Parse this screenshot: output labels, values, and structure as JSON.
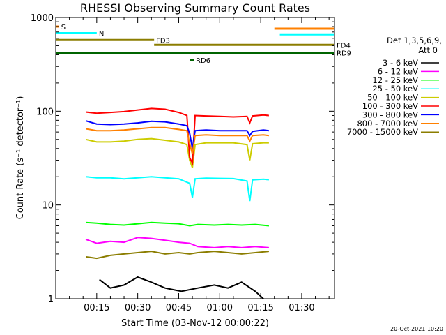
{
  "chart_data": {
    "type": "line",
    "title": "RHESSI Observing Summary Count Rates",
    "xlabel": "Start Time (03-Nov-12 00:00:22)",
    "ylabel": "Count Rate (s⁻¹ detector⁻¹)",
    "yscale": "log",
    "ylim": [
      1,
      1000
    ],
    "xlim_minutes": [
      0,
      102
    ],
    "x_ticks": [
      "00:15",
      "00:30",
      "00:45",
      "01:00",
      "01:15",
      "01:30"
    ],
    "x_tick_minutes": [
      15,
      30,
      45,
      60,
      75,
      90
    ],
    "y_ticks": [
      "1",
      "10",
      "100",
      "1000"
    ],
    "y_tick_values": [
      1,
      10,
      100,
      1000
    ],
    "legend_header": [
      "Det 1,3,5,6,9,",
      "Att 0"
    ],
    "legend_position": "right",
    "series": [
      {
        "name": "3 - 6 keV",
        "color": "#000000",
        "points": [
          [
            16,
            1.6
          ],
          [
            20,
            1.3
          ],
          [
            25,
            1.4
          ],
          [
            30,
            1.7
          ],
          [
            35,
            1.5
          ],
          [
            40,
            1.3
          ],
          [
            46,
            1.2
          ],
          [
            52,
            1.3
          ],
          [
            58,
            1.4
          ],
          [
            63,
            1.3
          ],
          [
            68,
            1.5
          ],
          [
            73,
            1.2
          ],
          [
            76,
            1.0
          ]
        ]
      },
      {
        "name": "6 - 12 keV",
        "color": "#ff00ff",
        "points": [
          [
            11,
            4.3
          ],
          [
            15,
            3.9
          ],
          [
            20,
            4.1
          ],
          [
            25,
            4.0
          ],
          [
            30,
            4.5
          ],
          [
            35,
            4.4
          ],
          [
            40,
            4.2
          ],
          [
            45,
            4.0
          ],
          [
            49,
            3.9
          ],
          [
            52,
            3.6
          ],
          [
            58,
            3.5
          ],
          [
            63,
            3.6
          ],
          [
            68,
            3.5
          ],
          [
            73,
            3.6
          ],
          [
            78,
            3.5
          ]
        ]
      },
      {
        "name": "12 - 25 keV",
        "color": "#00ff00",
        "points": [
          [
            11,
            6.5
          ],
          [
            15,
            6.4
          ],
          [
            20,
            6.2
          ],
          [
            25,
            6.1
          ],
          [
            30,
            6.3
          ],
          [
            35,
            6.5
          ],
          [
            40,
            6.4
          ],
          [
            45,
            6.3
          ],
          [
            49,
            6.0
          ],
          [
            52,
            6.2
          ],
          [
            58,
            6.1
          ],
          [
            63,
            6.2
          ],
          [
            68,
            6.1
          ],
          [
            73,
            6.2
          ],
          [
            78,
            6.0
          ]
        ]
      },
      {
        "name": "25 - 50 keV",
        "color": "#00ffff",
        "points": [
          [
            11,
            20
          ],
          [
            15,
            19.5
          ],
          [
            20,
            19.5
          ],
          [
            25,
            19
          ],
          [
            30,
            19.5
          ],
          [
            35,
            20
          ],
          [
            40,
            19.5
          ],
          [
            45,
            19
          ],
          [
            49,
            17
          ],
          [
            50,
            12
          ],
          [
            51,
            19
          ],
          [
            55,
            19.3
          ],
          [
            60,
            19.2
          ],
          [
            65,
            19.1
          ],
          [
            70,
            18
          ],
          [
            71,
            11
          ],
          [
            72,
            18.5
          ],
          [
            76,
            18.8
          ],
          [
            78,
            18.6
          ]
        ]
      },
      {
        "name": "50 - 100 keV",
        "color": "#cccc00",
        "points": [
          [
            11,
            50
          ],
          [
            15,
            47
          ],
          [
            20,
            47
          ],
          [
            25,
            48
          ],
          [
            30,
            50
          ],
          [
            35,
            51
          ],
          [
            40,
            49
          ],
          [
            45,
            47
          ],
          [
            48,
            44
          ],
          [
            49,
            30
          ],
          [
            50,
            25
          ],
          [
            51,
            44
          ],
          [
            55,
            46
          ],
          [
            60,
            46
          ],
          [
            65,
            46
          ],
          [
            70,
            44
          ],
          [
            71,
            30
          ],
          [
            72,
            45
          ],
          [
            76,
            46
          ],
          [
            78,
            46
          ]
        ]
      },
      {
        "name": "100 - 300 keV",
        "color": "#ff0000",
        "points": [
          [
            11,
            98
          ],
          [
            15,
            95
          ],
          [
            20,
            97
          ],
          [
            25,
            99
          ],
          [
            30,
            103
          ],
          [
            35,
            107
          ],
          [
            40,
            105
          ],
          [
            45,
            97
          ],
          [
            48,
            90
          ],
          [
            49,
            32
          ],
          [
            50,
            28
          ],
          [
            51,
            90
          ],
          [
            55,
            89
          ],
          [
            60,
            88
          ],
          [
            65,
            87
          ],
          [
            70,
            88
          ],
          [
            71,
            75
          ],
          [
            72,
            89
          ],
          [
            76,
            91
          ],
          [
            78,
            90
          ]
        ]
      },
      {
        "name": "300 - 800 keV",
        "color": "#0000ff",
        "points": [
          [
            11,
            79
          ],
          [
            15,
            73
          ],
          [
            20,
            72
          ],
          [
            25,
            73
          ],
          [
            30,
            75
          ],
          [
            35,
            78
          ],
          [
            40,
            77
          ],
          [
            45,
            73
          ],
          [
            48,
            70
          ],
          [
            49,
            58
          ],
          [
            50,
            40
          ],
          [
            51,
            62
          ],
          [
            55,
            63
          ],
          [
            60,
            62
          ],
          [
            65,
            62
          ],
          [
            70,
            62
          ],
          [
            71,
            55
          ],
          [
            72,
            61
          ],
          [
            76,
            63
          ],
          [
            78,
            62
          ]
        ]
      },
      {
        "name": "800 - 7000 keV",
        "color": "#ff8000",
        "points": [
          [
            11,
            65
          ],
          [
            15,
            62
          ],
          [
            20,
            62
          ],
          [
            25,
            63
          ],
          [
            30,
            65
          ],
          [
            35,
            67
          ],
          [
            40,
            67
          ],
          [
            45,
            64
          ],
          [
            48,
            62
          ],
          [
            49,
            45
          ],
          [
            50,
            35
          ],
          [
            51,
            55
          ],
          [
            55,
            56
          ],
          [
            60,
            55
          ],
          [
            65,
            55
          ],
          [
            70,
            55
          ],
          [
            71,
            48
          ],
          [
            72,
            55
          ],
          [
            76,
            56
          ],
          [
            78,
            55
          ]
        ]
      },
      {
        "name": "7000 - 15000 keV",
        "color": "#8b7d00",
        "points": [
          [
            11,
            2.8
          ],
          [
            15,
            2.7
          ],
          [
            20,
            2.9
          ],
          [
            25,
            3.0
          ],
          [
            30,
            3.1
          ],
          [
            35,
            3.2
          ],
          [
            40,
            3.0
          ],
          [
            45,
            3.1
          ],
          [
            49,
            3.0
          ],
          [
            52,
            3.1
          ],
          [
            58,
            3.2
          ],
          [
            63,
            3.1
          ],
          [
            68,
            3.0
          ],
          [
            73,
            3.1
          ],
          [
            78,
            3.2
          ]
        ]
      }
    ],
    "flags": [
      {
        "label": "S",
        "color": "#ff8000",
        "x_start": 0,
        "x_end": 1.2,
        "y": 800
      },
      {
        "label": "N",
        "color": "#00ffff",
        "x_start": 0,
        "x_end": 15,
        "y": 680
      },
      {
        "label": "FD3",
        "color": "#8b7d00",
        "x_start": 0,
        "x_end": 36,
        "y": 575
      },
      {
        "label": "FD4",
        "color": "#8b7d00",
        "x_start": 36,
        "x_end": 102,
        "y": 510
      },
      {
        "label": "RD9",
        "color": "#006400",
        "x_start": 0,
        "x_end": 102,
        "y": 420
      },
      {
        "label": "RD6",
        "color": "#006400",
        "x_start": 49,
        "x_end": 50.5,
        "y": 350
      },
      {
        "label": "",
        "color": "#ff8000",
        "x_start": 80,
        "x_end": 102,
        "y": 760
      },
      {
        "label": "",
        "color": "#00ffff",
        "x_start": 82,
        "x_end": 102,
        "y": 660
      }
    ],
    "timestamp": "20-Oct-2021 10:20"
  }
}
